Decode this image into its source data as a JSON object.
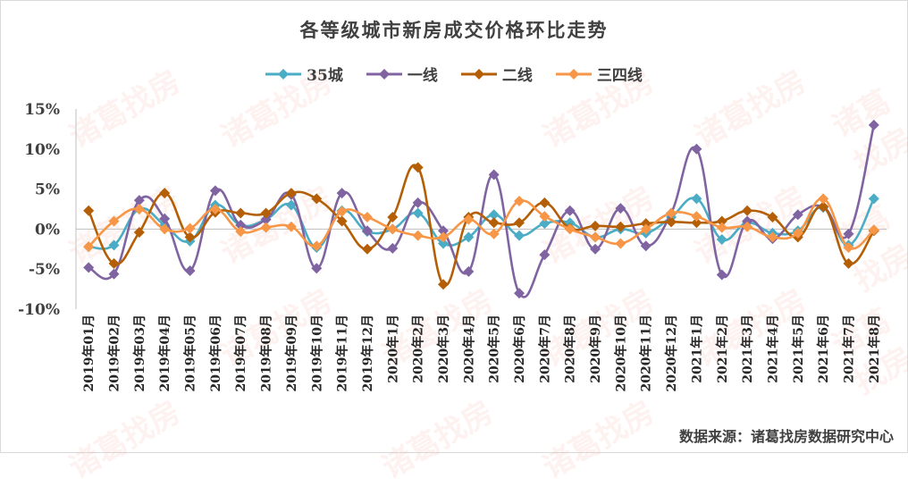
{
  "title": "各等级城市新房成交价格环比走势",
  "source": "数据来源：诸葛找房数据研究中心",
  "watermark": "诸葛找房",
  "chart_data": {
    "type": "line",
    "title": "各等级城市新房成交价格环比走势",
    "categories": [
      "2019年01月",
      "2019年02月",
      "2019年03月",
      "2019年04月",
      "2019年05月",
      "2019年06月",
      "2019年07月",
      "2019年08月",
      "2019年09月",
      "2019年10月",
      "2019年11月",
      "2019年12月",
      "2020年1月",
      "2020年2月",
      "2020年3月",
      "2020年4月",
      "2020年5月",
      "2020年6月",
      "2020年7月",
      "2020年8月",
      "2020年9月",
      "2020年10月",
      "2020年11月",
      "2020年12月",
      "2021年1月",
      "2021年2月",
      "2021年3月",
      "2021年4月",
      "2021年5月",
      "2021年6月",
      "2021年7月",
      "2021年8月"
    ],
    "yticks": [
      "15%",
      "10%",
      "5%",
      "0%",
      "-5%",
      "-10%"
    ],
    "ylim": [
      -10,
      15
    ],
    "smooth": true,
    "legend_position": "top",
    "series": [
      {
        "name": "35城",
        "color": "#4bacc6",
        "marker": "diamond",
        "values": [
          -2.2,
          -2.0,
          2.5,
          0.5,
          -1.5,
          3.0,
          0.5,
          1.2,
          3.0,
          -2.3,
          2.3,
          -0.3,
          0.0,
          2.0,
          -1.8,
          -1.0,
          1.8,
          -0.8,
          0.7,
          0.8,
          -1.0,
          0.0,
          -0.5,
          1.5,
          3.8,
          -1.3,
          0.8,
          -0.5,
          -0.2,
          2.7,
          -2.0,
          3.8
        ]
      },
      {
        "name": "一线",
        "color": "#8064a2",
        "marker": "diamond",
        "values": [
          -4.8,
          -5.6,
          3.6,
          1.3,
          -5.2,
          4.8,
          0.5,
          1.2,
          4.3,
          -4.9,
          4.5,
          -0.2,
          -2.4,
          3.3,
          -0.2,
          -5.3,
          6.8,
          -8.0,
          -3.2,
          2.3,
          -2.5,
          2.6,
          -2.1,
          2.0,
          10.0,
          -5.7,
          1.0,
          -1.2,
          1.8,
          2.8,
          -0.6,
          13.0
        ]
      },
      {
        "name": "二线",
        "color": "#b45f06",
        "marker": "diamond",
        "values": [
          2.3,
          -4.3,
          -0.4,
          4.5,
          -1.0,
          2.1,
          2.0,
          2.0,
          4.5,
          3.8,
          1.0,
          -2.5,
          1.5,
          7.7,
          -6.9,
          1.5,
          0.8,
          0.8,
          3.3,
          0.1,
          0.4,
          0.3,
          0.7,
          0.9,
          0.8,
          1.0,
          2.3,
          1.5,
          -1.0,
          2.8,
          -4.3,
          -0.2
        ]
      },
      {
        "name": "三四线",
        "color": "#f79646",
        "marker": "diamond",
        "values": [
          -2.2,
          1.0,
          2.5,
          0.0,
          0.1,
          2.5,
          -0.3,
          0.2,
          0.3,
          -2.1,
          2.2,
          1.5,
          0.0,
          -0.8,
          -1.0,
          1.2,
          -0.6,
          3.5,
          1.6,
          0.0,
          -1.0,
          -1.8,
          0.0,
          2.0,
          1.6,
          0.2,
          0.3,
          -1.0,
          -0.5,
          3.8,
          -2.3,
          -0.1
        ]
      }
    ]
  }
}
